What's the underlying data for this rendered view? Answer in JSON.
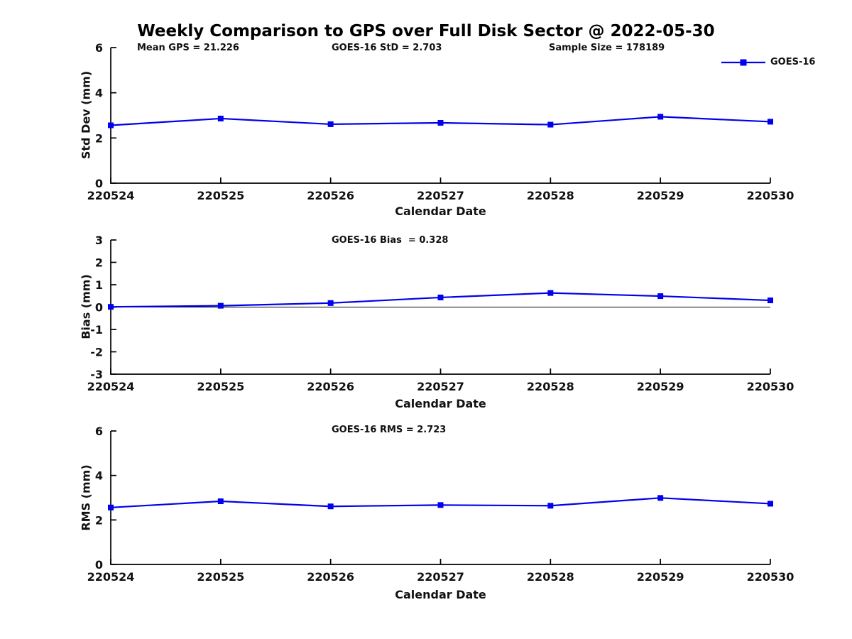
{
  "title": "Weekly Comparison to GPS over Full Disk Sector @ 2022-05-30",
  "legend": {
    "label": "GOES-16",
    "position": "top-right",
    "marker": "square"
  },
  "colors": {
    "series": "#0000EE",
    "text": "#111111",
    "axis": "#000000",
    "background": "#ffffff"
  },
  "chart_data": [
    {
      "type": "line",
      "annotations": [
        "Mean GPS = 21.226",
        "GOES-16 StD = 2.703",
        "Sample Size = 178189"
      ],
      "xlabel": "Calendar Date",
      "ylabel": "Std Dev (mm)",
      "ylim": [
        0,
        6
      ],
      "yticks": [
        0,
        2,
        4,
        6
      ],
      "grid": false,
      "legend_position": "top-right",
      "categories": [
        "220524",
        "220525",
        "220526",
        "220527",
        "220528",
        "220529",
        "220530"
      ],
      "series": [
        {
          "name": "GOES-16",
          "color": "#0000EE",
          "marker": "square",
          "values": [
            2.56,
            2.86,
            2.61,
            2.67,
            2.59,
            2.94,
            2.72
          ]
        }
      ]
    },
    {
      "type": "line",
      "annotation": "GOES-16 Bias  = 0.328",
      "xlabel": "Calendar Date",
      "ylabel": "Bias (mm)",
      "ylim": [
        -3,
        3
      ],
      "yticks": [
        -3,
        -2,
        -1,
        0,
        1,
        2,
        3
      ],
      "grid": false,
      "zero_line": true,
      "categories": [
        "220524",
        "220525",
        "220526",
        "220527",
        "220528",
        "220529",
        "220530"
      ],
      "series": [
        {
          "name": "GOES-16",
          "color": "#0000EE",
          "marker": "square",
          "values": [
            0.01,
            0.06,
            0.18,
            0.43,
            0.63,
            0.49,
            0.3
          ]
        }
      ]
    },
    {
      "type": "line",
      "annotation": "GOES-16 RMS = 2.723",
      "xlabel": "Calendar Date",
      "ylabel": "RMS (mm)",
      "ylim": [
        0,
        6
      ],
      "yticks": [
        0,
        2,
        4,
        6
      ],
      "grid": false,
      "categories": [
        "220524",
        "220525",
        "220526",
        "220527",
        "220528",
        "220529",
        "220530"
      ],
      "series": [
        {
          "name": "GOES-16",
          "color": "#0000EE",
          "marker": "square",
          "values": [
            2.56,
            2.84,
            2.61,
            2.67,
            2.64,
            2.99,
            2.73
          ]
        }
      ]
    }
  ]
}
